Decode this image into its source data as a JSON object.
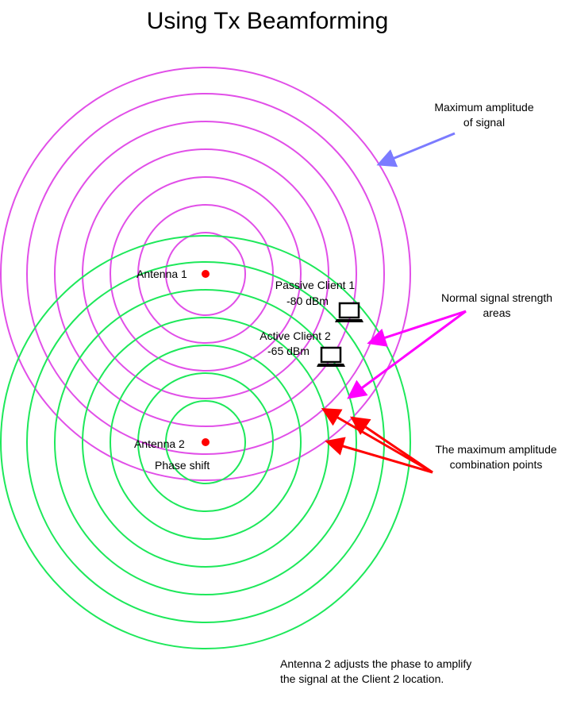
{
  "title": "Using Tx Beamforming",
  "labels": {
    "antenna1": "Antenna 1",
    "antenna2": "Antenna 2",
    "phase_shift": "Phase shift",
    "passive_client": "Passive Client 1",
    "passive_dbm": "-80 dBm",
    "active_client": "Active Client 2",
    "active_dbm": "-65 dBm",
    "max_amplitude_1": "Maximum amplitude",
    "max_amplitude_2": "of signal",
    "normal_1": "Normal signal strength",
    "normal_2": "areas",
    "combo_1": "The maximum amplitude",
    "combo_2": "combination points",
    "note_1": "Antenna 2 adjusts the phase to amplify",
    "note_2": "the signal at the Client 2 location."
  },
  "colors": {
    "antenna1_waves": "#e14fe8",
    "antenna2_waves": "#1de85a",
    "antenna_dot": "#ff0000",
    "max_amplitude_arrow": "#7b7bff",
    "normal_arrow": "#ff00ff",
    "combo_arrow": "#ff0000"
  },
  "icons": [
    "laptop-icon"
  ]
}
